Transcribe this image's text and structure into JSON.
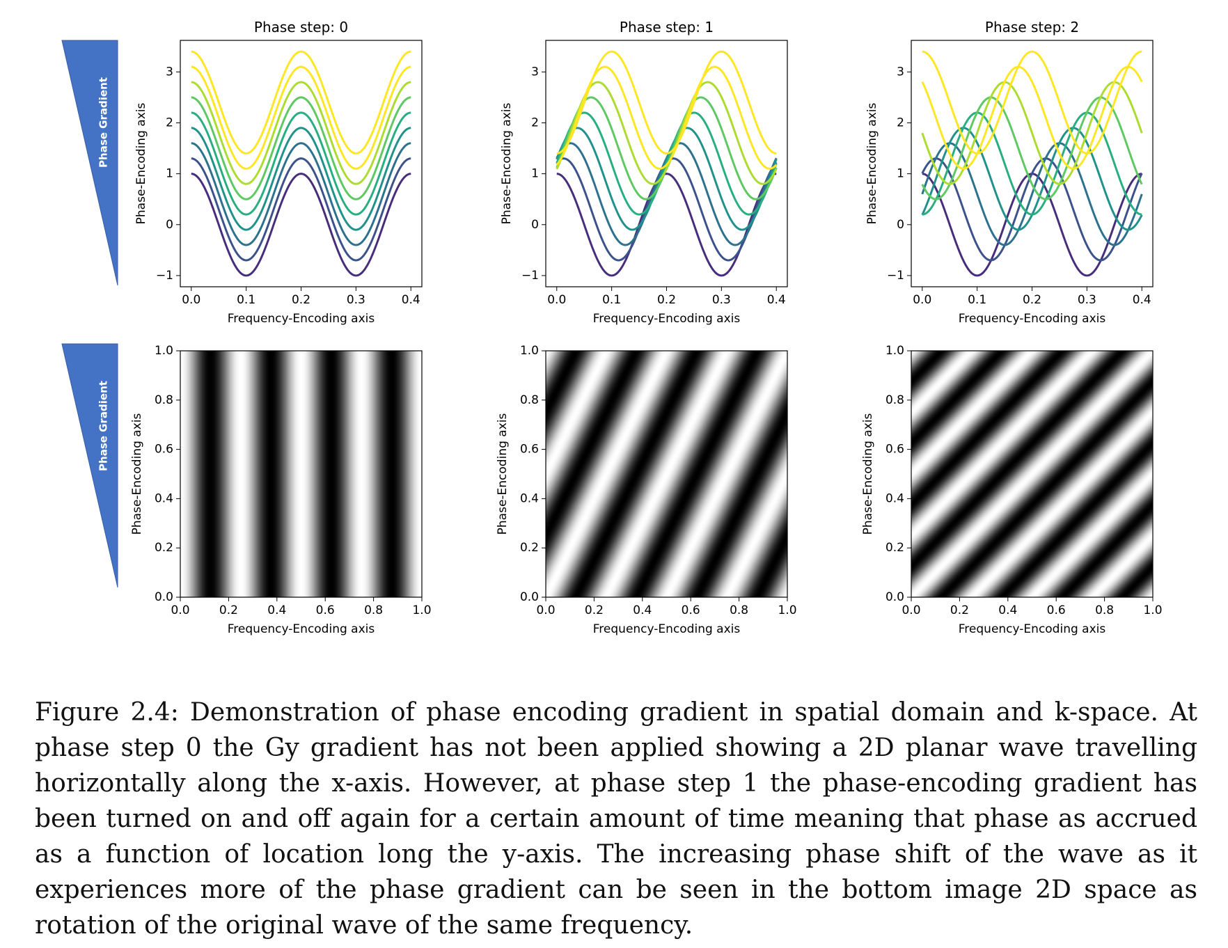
{
  "figure": {
    "gradient_label": "Phase Gradient",
    "gradient_color": "#4472c4",
    "line_colors": [
      "#472d7b",
      "#3b528b",
      "#2c728e",
      "#21918c",
      "#28ae80",
      "#5ec962",
      "#addc30",
      "#fde725"
    ]
  },
  "chart_data": [
    {
      "type": "line",
      "title": "Phase step: 0",
      "xlabel": "Frequency-Encoding axis",
      "ylabel": "Phase-Encoding axis",
      "xlim": [
        -0.02,
        0.42
      ],
      "ylim": [
        -1.22,
        3.62
      ],
      "xticks": [
        "0.0",
        "0.1",
        "0.2",
        "0.3",
        "0.4"
      ],
      "yticks": [
        "−1",
        "0",
        "1",
        "2",
        "3"
      ],
      "frequency": 5,
      "offset_step": 0.3,
      "phase_step": 0,
      "series_count": 9,
      "x_range": [
        0,
        0.4
      ]
    },
    {
      "type": "line",
      "title": "Phase step: 1",
      "xlabel": "Frequency-Encoding axis",
      "ylabel": "Phase-Encoding axis",
      "xlim": [
        -0.02,
        0.42
      ],
      "ylim": [
        -1.22,
        3.62
      ],
      "xticks": [
        "0.0",
        "0.1",
        "0.2",
        "0.3",
        "0.4"
      ],
      "yticks": [
        "−1",
        "0",
        "1",
        "2",
        "3"
      ],
      "frequency": 5,
      "offset_step": 0.3,
      "phase_step": 1,
      "series_count": 9,
      "x_range": [
        0,
        0.4
      ]
    },
    {
      "type": "line",
      "title": "Phase step: 2",
      "xlabel": "Frequency-Encoding axis",
      "ylabel": "Phase-Encoding axis",
      "xlim": [
        -0.02,
        0.42
      ],
      "ylim": [
        -1.22,
        3.62
      ],
      "xticks": [
        "0.0",
        "0.1",
        "0.2",
        "0.3",
        "0.4"
      ],
      "yticks": [
        "−1",
        "0",
        "1",
        "2",
        "3"
      ],
      "frequency": 5,
      "offset_step": 0.3,
      "phase_step": 2,
      "series_count": 9,
      "x_range": [
        0,
        0.4
      ]
    },
    {
      "type": "heatmap",
      "xlabel": "Frequency-Encoding axis",
      "ylabel": "Phase-Encoding axis",
      "xlim": [
        0,
        1
      ],
      "ylim": [
        0,
        1
      ],
      "xticks": [
        "0.0",
        "0.2",
        "0.4",
        "0.6",
        "0.8",
        "1.0"
      ],
      "yticks": [
        "0.0",
        "0.2",
        "0.4",
        "0.6",
        "0.8",
        "1.0"
      ],
      "cycles_x": 4,
      "cycles_y": 0
    },
    {
      "type": "heatmap",
      "xlabel": "Frequency-Encoding axis",
      "ylabel": "Phase-Encoding axis",
      "xlim": [
        0,
        1
      ],
      "ylim": [
        0,
        1
      ],
      "xticks": [
        "0.0",
        "0.2",
        "0.4",
        "0.6",
        "0.8",
        "1.0"
      ],
      "yticks": [
        "0.0",
        "0.2",
        "0.4",
        "0.6",
        "0.8",
        "1.0"
      ],
      "cycles_x": 4,
      "cycles_y": -2
    },
    {
      "type": "heatmap",
      "xlabel": "Frequency-Encoding axis",
      "ylabel": "Phase-Encoding axis",
      "xlim": [
        0,
        1
      ],
      "ylim": [
        0,
        1
      ],
      "xticks": [
        "0.0",
        "0.2",
        "0.4",
        "0.6",
        "0.8",
        "1.0"
      ],
      "yticks": [
        "0.0",
        "0.2",
        "0.4",
        "0.6",
        "0.8",
        "1.0"
      ],
      "cycles_x": 4,
      "cycles_y": -4
    }
  ],
  "caption": "Figure 2.4: Demonstration of phase encoding gradient in spatial domain and k-space. At phase step 0 the Gy gradient has not been applied showing a 2D planar wave travelling horizontally along the x-axis. However, at phase step 1 the phase-encoding gradient has been turned on and off again for a certain amount of time meaning that phase as accrued as a function of location long the y-axis. The increasing phase shift of the wave as it experiences more of the phase gradient can be seen in the bottom image 2D space as rotation of the original wave of the same frequency."
}
